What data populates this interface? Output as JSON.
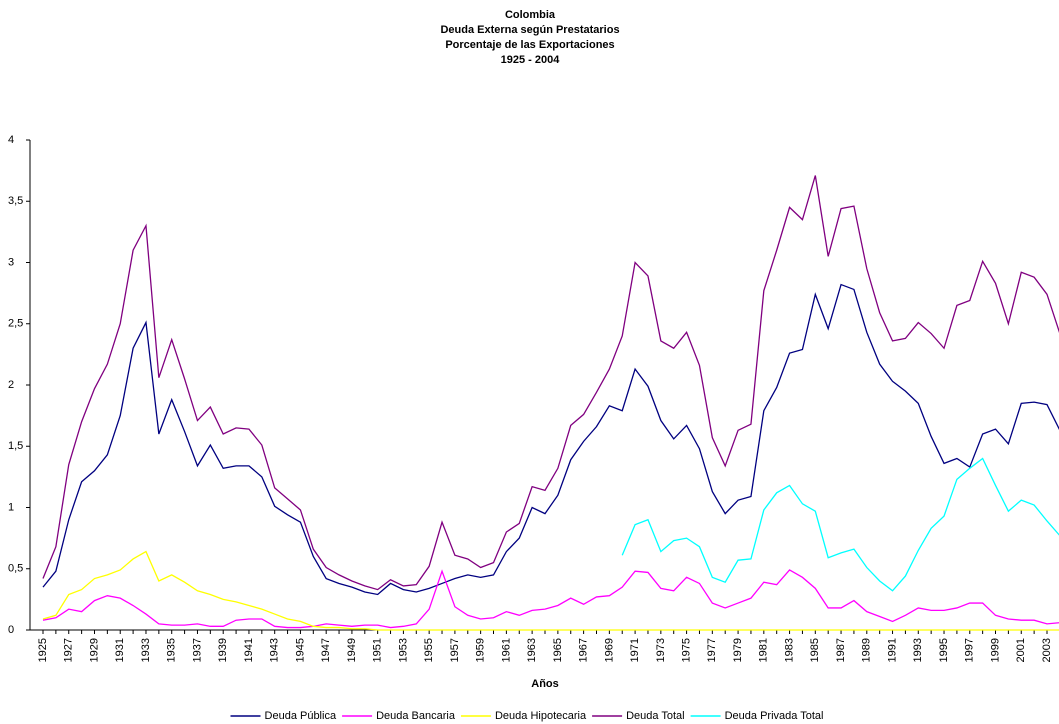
{
  "chart_data": {
    "type": "line",
    "title": [
      "Colombia",
      "Deuda Externa según Prestatarios",
      "Porcentaje de las Exportaciones",
      "1925 - 2004"
    ],
    "x_label": "Años",
    "categories": [
      "1925",
      null,
      "1927",
      null,
      "1929",
      null,
      "1931",
      null,
      "1933",
      null,
      "1935",
      null,
      "1937",
      null,
      "1939",
      null,
      "1941",
      null,
      "1943",
      null,
      "1945",
      null,
      "1947",
      null,
      "1949",
      null,
      "1951",
      null,
      "1953",
      null,
      "1955",
      null,
      "1957",
      null,
      "1959",
      null,
      "1961",
      null,
      "1963",
      null,
      "1965",
      null,
      "1967",
      null,
      "1969",
      null,
      "1971",
      null,
      "1973",
      null,
      "1975",
      null,
      "1977",
      null,
      "1979",
      null,
      "1981",
      null,
      "1983",
      null,
      "1985",
      null,
      "1987",
      null,
      "1989",
      null,
      "1991",
      null,
      "1993",
      null,
      "1995",
      null,
      "1997",
      null,
      "1999",
      null,
      "2001",
      null,
      "2003",
      null
    ],
    "series": [
      {
        "name": "Deuda Pública",
        "color": "#000080",
        "values": [
          0.35,
          0.48,
          0.9,
          1.21,
          1.3,
          1.43,
          1.75,
          2.3,
          2.51,
          1.6,
          1.88,
          1.62,
          1.34,
          1.51,
          1.32,
          1.34,
          1.34,
          1.25,
          1.01,
          0.94,
          0.88,
          0.6,
          0.42,
          0.38,
          0.35,
          0.31,
          0.29,
          0.38,
          0.33,
          0.31,
          0.34,
          0.38,
          0.42,
          0.45,
          0.43,
          0.45,
          0.64,
          0.75,
          1.0,
          0.95,
          1.1,
          1.39,
          1.54,
          1.66,
          1.83,
          1.79,
          2.13,
          1.99,
          1.71,
          1.56,
          1.67,
          1.48,
          1.13,
          0.95,
          1.06,
          1.09,
          1.79,
          1.98,
          2.26,
          2.29,
          2.74,
          2.46,
          2.82,
          2.78,
          2.43,
          2.17,
          2.03,
          1.95,
          1.85,
          1.58,
          1.36,
          1.4,
          1.33,
          1.6,
          1.64,
          1.52,
          1.85,
          1.86,
          1.84,
          1.63
        ]
      },
      {
        "name": "Deuda Bancaria",
        "color": "#ff00ff",
        "values": [
          0.08,
          0.1,
          0.17,
          0.15,
          0.24,
          0.28,
          0.26,
          0.2,
          0.13,
          0.05,
          0.04,
          0.04,
          0.05,
          0.03,
          0.03,
          0.08,
          0.09,
          0.09,
          0.03,
          0.02,
          0.02,
          0.03,
          0.05,
          0.04,
          0.03,
          0.04,
          0.04,
          0.02,
          0.03,
          0.05,
          0.17,
          0.48,
          0.19,
          0.12,
          0.09,
          0.1,
          0.15,
          0.12,
          0.16,
          0.17,
          0.2,
          0.26,
          0.21,
          0.27,
          0.28,
          0.35,
          0.48,
          0.47,
          0.34,
          0.32,
          0.43,
          0.38,
          0.22,
          0.18,
          0.22,
          0.26,
          0.39,
          0.37,
          0.49,
          0.43,
          0.34,
          0.18,
          0.18,
          0.24,
          0.15,
          0.11,
          0.07,
          0.12,
          0.18,
          0.16,
          0.16,
          0.18,
          0.22,
          0.22,
          0.12,
          0.09,
          0.08,
          0.08,
          0.05,
          0.06
        ]
      },
      {
        "name": "Deuda Hipotecaria",
        "color": "#ffff00",
        "values": [
          0.09,
          0.12,
          0.29,
          0.33,
          0.42,
          0.45,
          0.49,
          0.58,
          0.64,
          0.4,
          0.45,
          0.39,
          0.32,
          0.29,
          0.25,
          0.23,
          0.2,
          0.17,
          0.13,
          0.09,
          0.07,
          0.03,
          0.02,
          0.02,
          0.01,
          0.01,
          0,
          0,
          0,
          0,
          0,
          0,
          0,
          0,
          0,
          0,
          0,
          0,
          0,
          0,
          0,
          0,
          0,
          0,
          0,
          0,
          0,
          0,
          0,
          0,
          0,
          0,
          0,
          0,
          0,
          0,
          0,
          0,
          0,
          0,
          0,
          0,
          0,
          0,
          0,
          0,
          0,
          0,
          0,
          0,
          0,
          0,
          0,
          0,
          0,
          0,
          0,
          0,
          0,
          0
        ]
      },
      {
        "name": "Deuda Total",
        "color": "#800080",
        "values": [
          0.42,
          0.68,
          1.35,
          1.7,
          1.97,
          2.17,
          2.5,
          3.1,
          3.3,
          2.06,
          2.37,
          2.05,
          1.71,
          1.82,
          1.6,
          1.65,
          1.64,
          1.51,
          1.16,
          1.07,
          0.98,
          0.66,
          0.51,
          0.45,
          0.4,
          0.36,
          0.33,
          0.41,
          0.36,
          0.37,
          0.52,
          0.88,
          0.61,
          0.58,
          0.51,
          0.55,
          0.8,
          0.87,
          1.17,
          1.14,
          1.32,
          1.67,
          1.76,
          1.94,
          2.13,
          2.4,
          3.0,
          2.89,
          2.36,
          2.3,
          2.43,
          2.16,
          1.57,
          1.34,
          1.63,
          1.68,
          2.77,
          3.1,
          3.45,
          3.35,
          3.71,
          3.05,
          3.44,
          3.46,
          2.95,
          2.59,
          2.36,
          2.38,
          2.51,
          2.42,
          2.3,
          2.65,
          2.69,
          3.01,
          2.83,
          2.5,
          2.92,
          2.88,
          2.74,
          2.42
        ]
      },
      {
        "name": "Deuda Privada Total",
        "color": "#00ffff",
        "values": [
          null,
          null,
          null,
          null,
          null,
          null,
          null,
          null,
          null,
          null,
          null,
          null,
          null,
          null,
          null,
          null,
          null,
          null,
          null,
          null,
          null,
          null,
          null,
          null,
          null,
          null,
          null,
          null,
          null,
          null,
          null,
          null,
          null,
          null,
          null,
          null,
          null,
          null,
          null,
          null,
          null,
          null,
          null,
          null,
          null,
          0.61,
          0.86,
          0.9,
          0.64,
          0.73,
          0.75,
          0.68,
          0.43,
          0.39,
          0.57,
          0.58,
          0.98,
          1.12,
          1.18,
          1.03,
          0.97,
          0.59,
          0.63,
          0.66,
          0.51,
          0.4,
          0.32,
          0.44,
          0.65,
          0.83,
          0.93,
          1.23,
          1.32,
          1.4,
          1.18,
          0.97,
          1.06,
          1.02,
          0.89,
          0.77
        ]
      }
    ],
    "ylim": [
      0,
      4
    ],
    "yticks": [
      0,
      {
        "value": 0.5,
        "label": "0,5"
      },
      1,
      {
        "value": 1.5,
        "label": "1,5"
      },
      2,
      {
        "value": 2.5,
        "label": "2,5"
      },
      3,
      {
        "value": 3.5,
        "label": "3,5"
      },
      4
    ],
    "legend": "bottom"
  }
}
